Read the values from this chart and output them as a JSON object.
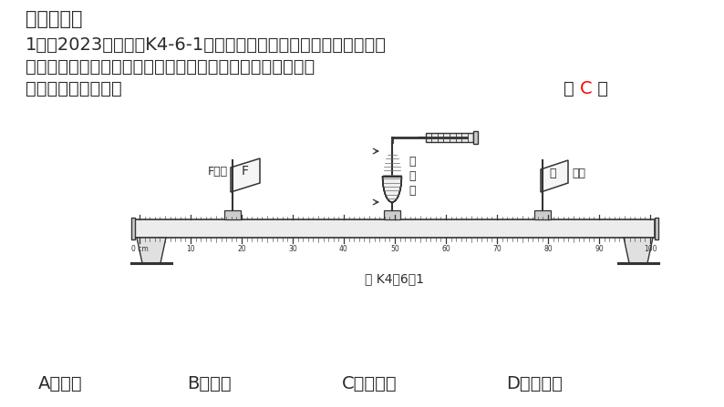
{
  "bg_color": "#ffffff",
  "title_section": "一、选择题",
  "q_line1": "1．（2023广西）图K4-6-1是跨学科实践小组利用物理实验室的光",
  "q_line2": "具座及配件设计的一个模拟人的眼球成像过程装置，其中水透",
  "q_line3": "镜相当于眼球结构的",
  "answer_c": "C",
  "answer_bracket_l": "（ ",
  "answer_bracket_r": " ）",
  "fig_label": "图 K4－6－1",
  "opt_a": "A．角膜",
  "opt_b": "B．瞳孔",
  "opt_c": "C．晶状体",
  "opt_d": "D．视网膜",
  "text_color": "#2b2b2b",
  "answer_color": "#ff0000",
  "line_color": "#333333",
  "bench_color": "#f0f0f0",
  "fs_title": 15,
  "fs_body": 14,
  "fs_small": 10,
  "fs_diagram": 9
}
